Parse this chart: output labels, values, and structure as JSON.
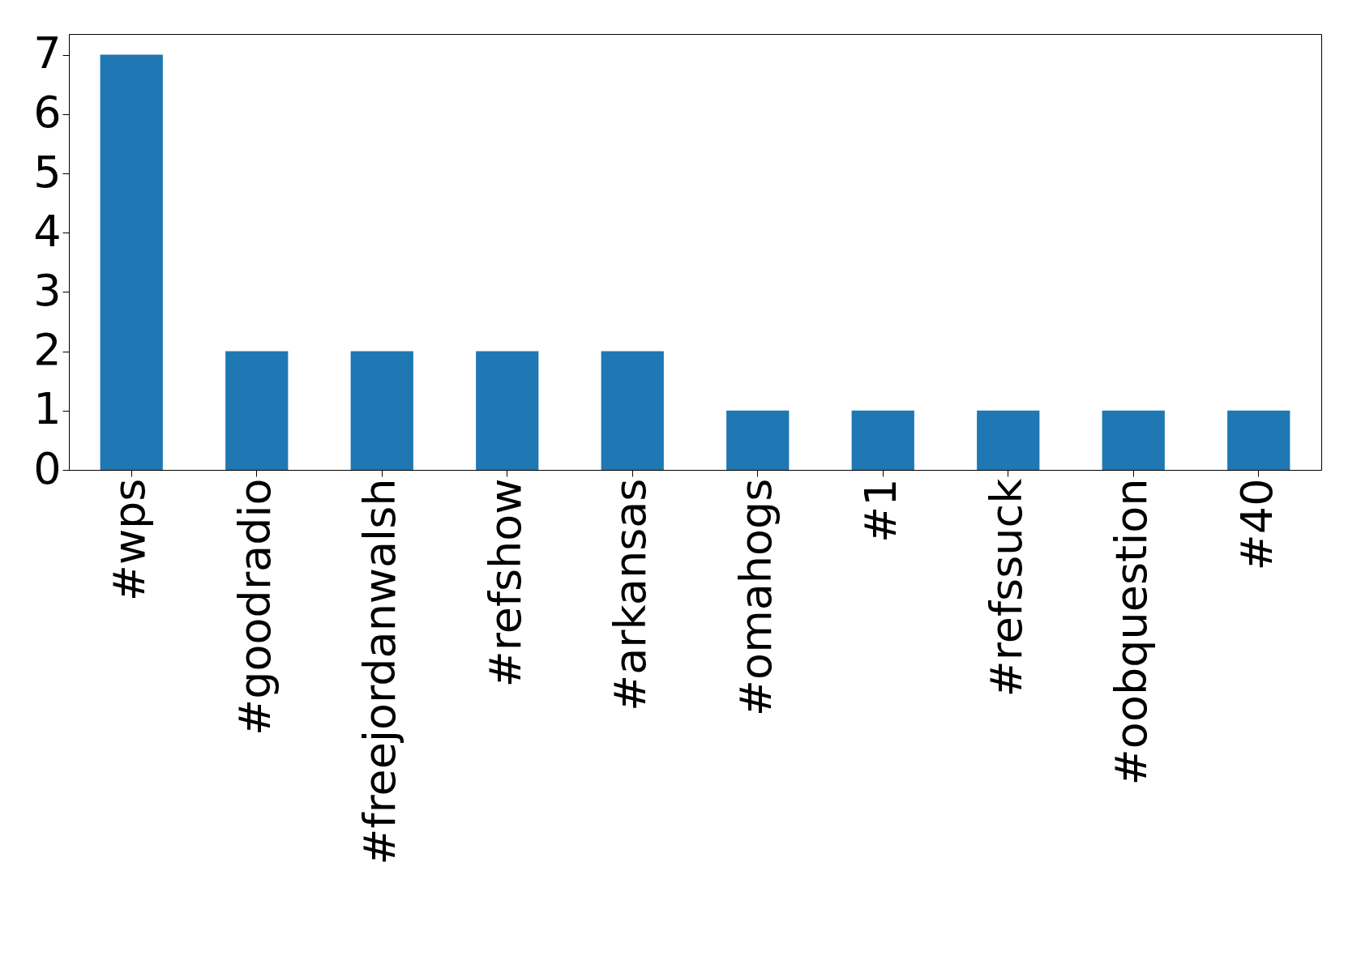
{
  "chart_data": {
    "type": "bar",
    "categories": [
      "#wps",
      "#goodradio",
      "#freejordanwalsh",
      "#refshow",
      "#arkansas",
      "#omahogs",
      "#1",
      "#refssuck",
      "#oobquestion",
      "#40"
    ],
    "values": [
      7,
      2,
      2,
      2,
      2,
      1,
      1,
      1,
      1,
      1
    ],
    "color": "#1f77b4",
    "ylim": [
      0,
      7.35
    ],
    "yticks": [
      0,
      1,
      2,
      3,
      4,
      5,
      6,
      7
    ],
    "grid": false
  }
}
